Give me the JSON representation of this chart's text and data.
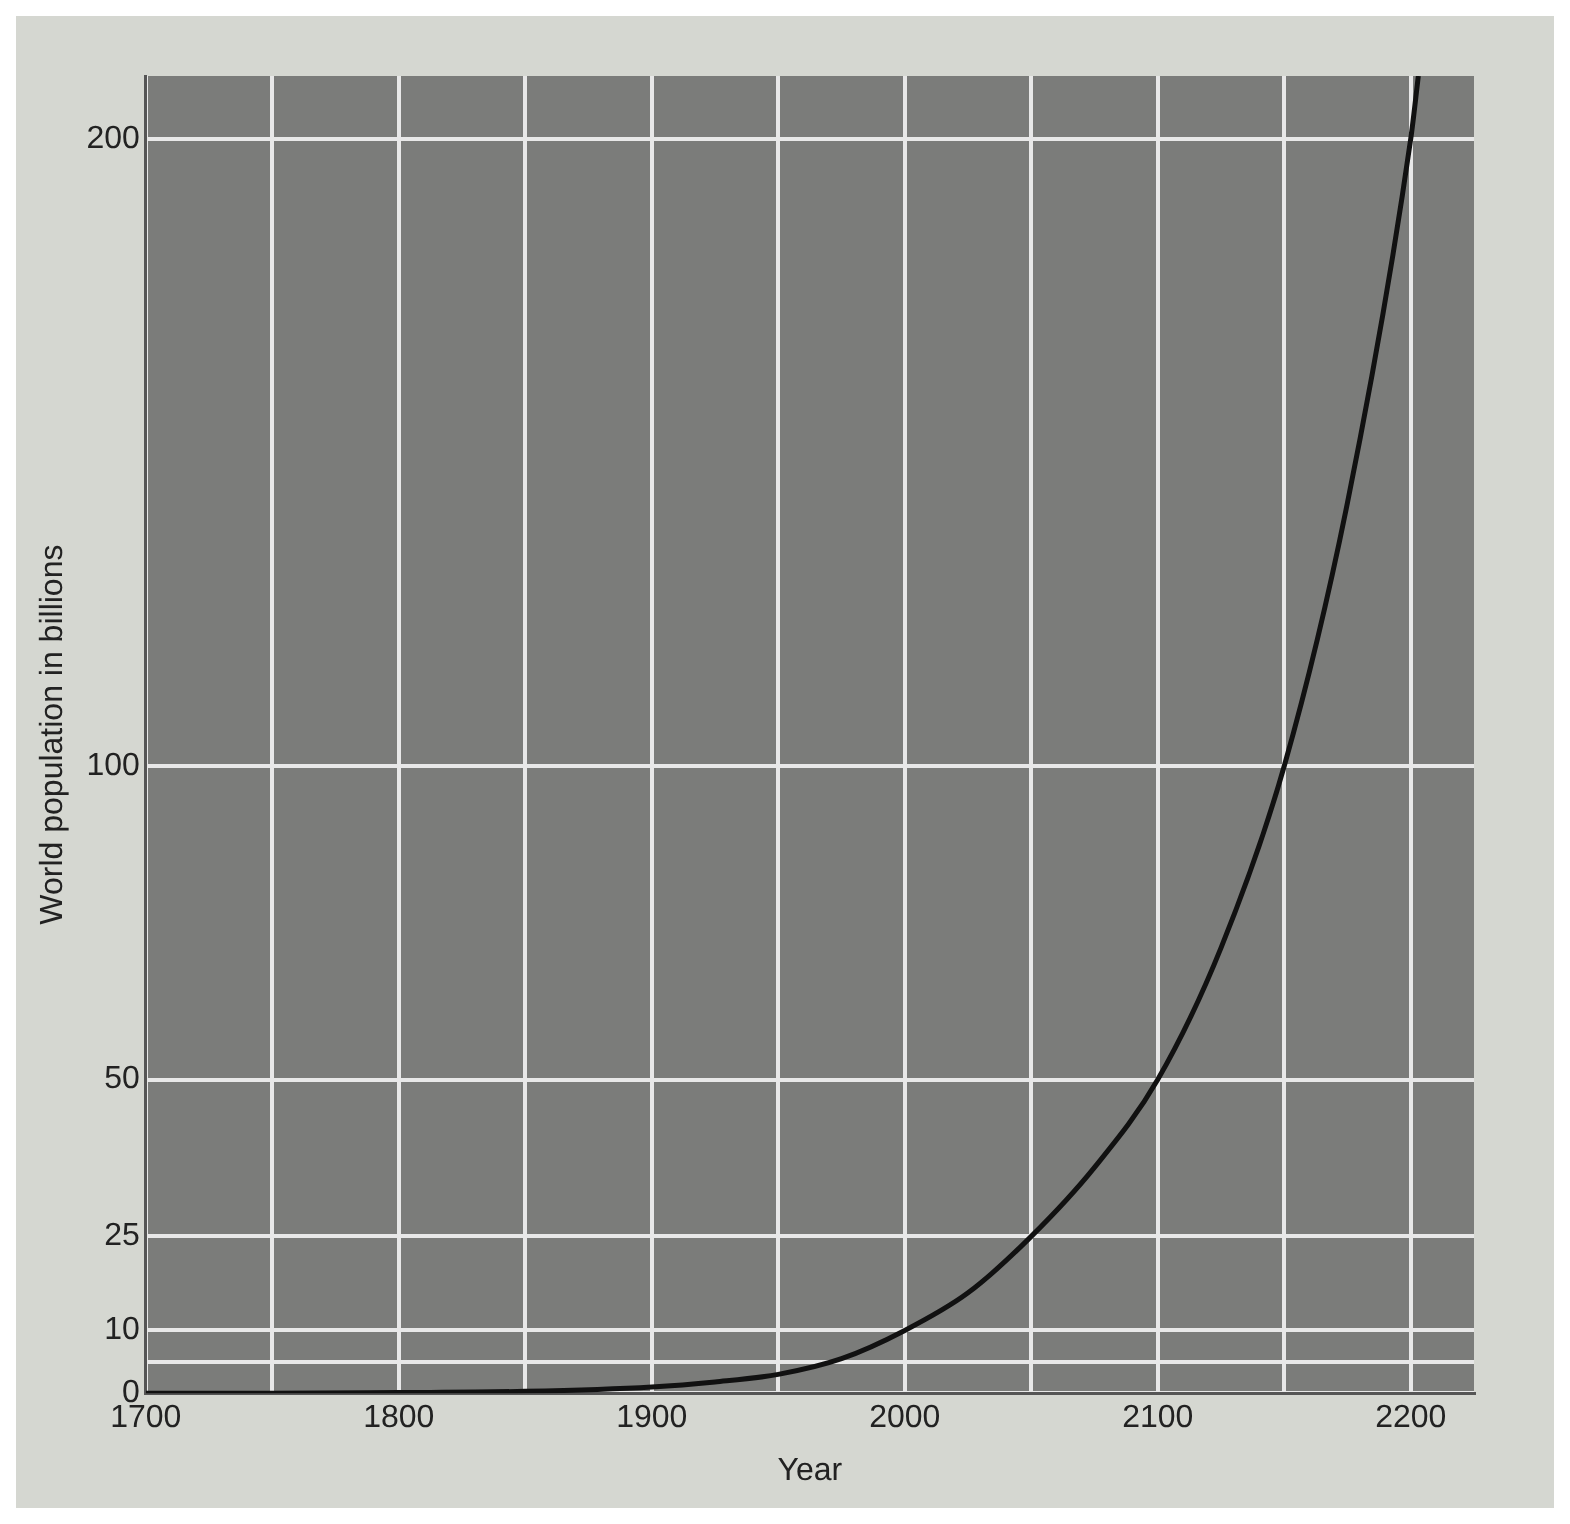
{
  "chart_data": {
    "type": "line",
    "xlabel": "Year",
    "ylabel": "World population in billions",
    "x": [
      1700,
      1750,
      1800,
      1850,
      1900,
      1925,
      1950,
      1975,
      2000,
      2025,
      2050,
      2075,
      2100,
      2125,
      2150,
      2175,
      2200,
      2203
    ],
    "series": [
      {
        "color": "#111111",
        "values": [
          0,
          0,
          0.1,
          0.3,
          1,
          1.8,
          3,
          5.5,
          10,
          16,
          25,
          36,
          50,
          71,
          100,
          142,
          200,
          210
        ]
      }
    ],
    "xlim": [
      1700,
      2225
    ],
    "xticks": [
      1700,
      {
        "value": 1750,
        "label": null
      },
      1800,
      {
        "value": 1850,
        "label": null
      },
      1900,
      {
        "value": 1950,
        "label": null
      },
      2000,
      {
        "value": 2050,
        "label": null
      },
      2100,
      {
        "value": 2150,
        "label": null
      },
      2200
    ],
    "ylim": [
      0,
      210
    ],
    "yticks": [
      0,
      {
        "value": 5,
        "label": null
      },
      10,
      25,
      50,
      100,
      200
    ],
    "grid": true,
    "legend": false,
    "marker": "none",
    "line_style": "solid"
  }
}
